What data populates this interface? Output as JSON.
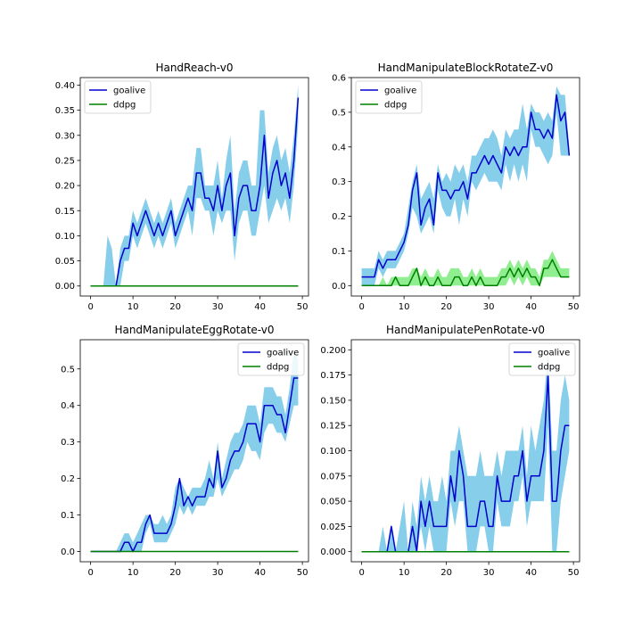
{
  "colors": {
    "goalive_line": "#0000cd",
    "goalive_band": "#87ceeb",
    "ddpg_line": "#008000",
    "ddpg_band": "#90ee90",
    "axis": "#000000"
  },
  "chart_data": [
    {
      "type": "line",
      "title": "HandReach-v0",
      "xlabel": "",
      "ylabel": "",
      "xlim": [
        -2.45,
        51.45
      ],
      "ylim": [
        -0.02,
        0.415
      ],
      "xticks": [
        0,
        10,
        20,
        30,
        40,
        50
      ],
      "yticks": [
        0.0,
        0.05,
        0.1,
        0.15,
        0.2,
        0.25,
        0.3,
        0.35,
        0.4
      ],
      "ytick_labels": [
        "0.00",
        "0.05",
        "0.10",
        "0.15",
        "0.20",
        "0.25",
        "0.30",
        "0.35",
        "0.40"
      ],
      "legend": "upper-left",
      "x_range": [
        0,
        49
      ],
      "series": [
        {
          "name": "goalive",
          "color": "#0000cd",
          "band_color": "#87ceeb",
          "values": [
            0,
            0,
            0,
            0,
            0,
            0,
            0,
            0.05,
            0.075,
            0.075,
            0.125,
            0.1,
            0.125,
            0.15,
            0.125,
            0.1,
            0.125,
            0.1,
            0.125,
            0.15,
            0.1,
            0.125,
            0.15,
            0.175,
            0.15,
            0.225,
            0.225,
            0.175,
            0.175,
            0.15,
            0.2,
            0.15,
            0.2,
            0.225,
            0.1,
            0.175,
            0.2,
            0.2,
            0.15,
            0.15,
            0.2,
            0.3,
            0.175,
            0.225,
            0.25,
            0.2,
            0.225,
            0.175,
            0.25,
            0.375
          ],
          "lower": [
            0,
            0,
            0,
            0,
            0,
            0,
            0,
            0,
            0.05,
            0.05,
            0.1,
            0.075,
            0.1,
            0.125,
            0.1,
            0.075,
            0.1,
            0.075,
            0.1,
            0.125,
            0.075,
            0.1,
            0.125,
            0.15,
            0.1,
            0.175,
            0.175,
            0.15,
            0.15,
            0.1,
            0.15,
            0.125,
            0.15,
            0.15,
            0.05,
            0.125,
            0.15,
            0.15,
            0.1,
            0.1,
            0.15,
            0.2,
            0.125,
            0.15,
            0.175,
            0.15,
            0.175,
            0.125,
            0.2,
            0.325
          ],
          "upper": [
            0,
            0,
            0,
            0,
            0.1,
            0.075,
            0,
            0.075,
            0.1,
            0.1,
            0.15,
            0.125,
            0.15,
            0.175,
            0.15,
            0.125,
            0.15,
            0.125,
            0.15,
            0.175,
            0.125,
            0.15,
            0.175,
            0.2,
            0.2,
            0.275,
            0.275,
            0.2,
            0.2,
            0.2,
            0.25,
            0.175,
            0.25,
            0.3,
            0.15,
            0.225,
            0.25,
            0.25,
            0.2,
            0.2,
            0.35,
            0.35,
            0.225,
            0.275,
            0.3,
            0.25,
            0.275,
            0.225,
            0.3,
            0.4
          ]
        },
        {
          "name": "ddpg",
          "color": "#008000",
          "band_color": "#90ee90",
          "values": [
            0,
            0,
            0,
            0,
            0,
            0,
            0,
            0,
            0,
            0,
            0,
            0,
            0,
            0,
            0,
            0,
            0,
            0,
            0,
            0,
            0,
            0,
            0,
            0,
            0,
            0,
            0,
            0,
            0,
            0,
            0,
            0,
            0,
            0,
            0,
            0,
            0,
            0,
            0,
            0,
            0,
            0,
            0,
            0,
            0,
            0,
            0,
            0,
            0,
            0
          ]
        }
      ]
    },
    {
      "type": "line",
      "title": "HandManipulateBlockRotateZ-v0",
      "xlabel": "",
      "ylabel": "",
      "xlim": [
        -2.45,
        51.45
      ],
      "ylim": [
        -0.03,
        0.6
      ],
      "xticks": [
        0,
        10,
        20,
        30,
        40,
        50
      ],
      "yticks": [
        0.0,
        0.1,
        0.2,
        0.3,
        0.4,
        0.5,
        0.6
      ],
      "ytick_labels": [
        "0.0",
        "0.1",
        "0.2",
        "0.3",
        "0.4",
        "0.5",
        "0.6"
      ],
      "legend": "upper-left",
      "x_range": [
        0,
        49
      ],
      "series": [
        {
          "name": "goalive",
          "color": "#0000cd",
          "band_color": "#87ceeb",
          "values": [
            0.025,
            0.025,
            0.025,
            0.025,
            0.075,
            0.05,
            0.075,
            0.075,
            0.075,
            0.1,
            0.125,
            0.175,
            0.275,
            0.325,
            0.175,
            0.225,
            0.25,
            0.175,
            0.325,
            0.275,
            0.275,
            0.25,
            0.275,
            0.275,
            0.3,
            0.25,
            0.325,
            0.325,
            0.35,
            0.375,
            0.35,
            0.375,
            0.35,
            0.325,
            0.4,
            0.375,
            0.4,
            0.375,
            0.4,
            0.4,
            0.5,
            0.45,
            0.45,
            0.425,
            0.45,
            0.425,
            0.55,
            0.475,
            0.5,
            0.375
          ],
          "lower": [
            0,
            0,
            0,
            0,
            0.05,
            0.025,
            0.05,
            0.05,
            0.05,
            0.075,
            0.1,
            0.15,
            0.225,
            0.2,
            0.15,
            0.175,
            0.2,
            0.15,
            0.275,
            0.225,
            0.2,
            0.2,
            0.25,
            0.175,
            0.25,
            0.2,
            0.3,
            0.275,
            0.3,
            0.325,
            0.3,
            0.3,
            0.3,
            0.275,
            0.35,
            0.3,
            0.35,
            0.3,
            0.35,
            0.3,
            0.45,
            0.4,
            0.4,
            0.375,
            0.35,
            0.375,
            0.5,
            0.375,
            0.375,
            0.375
          ],
          "upper": [
            0.05,
            0.05,
            0.05,
            0.05,
            0.1,
            0.075,
            0.1,
            0.1,
            0.1,
            0.125,
            0.15,
            0.225,
            0.3,
            0.35,
            0.25,
            0.275,
            0.3,
            0.25,
            0.35,
            0.3,
            0.325,
            0.3,
            0.35,
            0.325,
            0.35,
            0.3,
            0.375,
            0.375,
            0.4,
            0.425,
            0.425,
            0.45,
            0.425,
            0.375,
            0.45,
            0.425,
            0.45,
            0.45,
            0.525,
            0.45,
            0.525,
            0.5,
            0.5,
            0.475,
            0.5,
            0.475,
            0.575,
            0.55,
            0.55,
            0.4
          ]
        },
        {
          "name": "ddpg",
          "color": "#008000",
          "band_color": "#90ee90",
          "values": [
            0,
            0,
            0,
            0,
            0,
            0,
            0,
            0,
            0.025,
            0,
            0,
            0,
            0.025,
            0.05,
            0,
            0.025,
            0,
            0,
            0.025,
            0,
            0,
            0,
            0.025,
            0.025,
            0,
            0,
            0.025,
            0,
            0.025,
            0,
            0,
            0,
            0,
            0.025,
            0.025,
            0.05,
            0.025,
            0.05,
            0.025,
            0.05,
            0.025,
            0.025,
            0,
            0.05,
            0.05,
            0.075,
            0.05,
            0.025,
            0.025,
            0.025
          ],
          "lower": [
            0,
            0,
            0,
            0,
            0,
            0,
            0,
            0,
            0,
            0,
            0,
            0,
            0,
            0,
            0,
            0,
            0,
            0,
            0,
            0,
            0,
            0,
            0,
            0,
            0,
            0,
            0,
            0,
            0,
            0,
            0,
            0,
            0,
            0,
            0,
            0.025,
            0,
            0.025,
            0,
            0.025,
            0,
            0,
            0,
            0.025,
            0.025,
            0.025,
            0.025,
            0.025,
            0.025,
            0.025
          ],
          "upper": [
            0,
            0,
            0,
            0,
            0,
            0.025,
            0,
            0.025,
            0.025,
            0.025,
            0.025,
            0.025,
            0.05,
            0.05,
            0.025,
            0.05,
            0.025,
            0.025,
            0.05,
            0.025,
            0.025,
            0.05,
            0.05,
            0.05,
            0.025,
            0.025,
            0.05,
            0.025,
            0.05,
            0.025,
            0.025,
            0.025,
            0.025,
            0.05,
            0.05,
            0.075,
            0.05,
            0.075,
            0.05,
            0.075,
            0.05,
            0.05,
            0.025,
            0.075,
            0.075,
            0.1,
            0.075,
            0.05,
            0.05,
            0.05
          ]
        }
      ]
    },
    {
      "type": "line",
      "title": "HandManipulateEggRotate-v0",
      "xlabel": "",
      "ylabel": "",
      "xlim": [
        -2.45,
        51.45
      ],
      "ylim": [
        -0.028,
        0.58
      ],
      "xticks": [
        0,
        10,
        20,
        30,
        40,
        50
      ],
      "yticks": [
        0.0,
        0.1,
        0.2,
        0.3,
        0.4,
        0.5
      ],
      "ytick_labels": [
        "0.0",
        "0.1",
        "0.2",
        "0.3",
        "0.4",
        "0.5"
      ],
      "legend": "upper-right",
      "x_range": [
        0,
        49
      ],
      "series": [
        {
          "name": "goalive",
          "color": "#0000cd",
          "band_color": "#87ceeb",
          "values": [
            0,
            0,
            0,
            0,
            0,
            0,
            0,
            0,
            0.025,
            0.025,
            0,
            0.025,
            0.025,
            0.075,
            0.1,
            0.05,
            0.05,
            0.05,
            0.05,
            0.075,
            0.125,
            0.2,
            0.125,
            0.15,
            0.125,
            0.15,
            0.15,
            0.15,
            0.2,
            0.175,
            0.275,
            0.175,
            0.2,
            0.25,
            0.275,
            0.275,
            0.3,
            0.35,
            0.35,
            0.35,
            0.3,
            0.4,
            0.4,
            0.4,
            0.375,
            0.375,
            0.325,
            0.4,
            0.475,
            0.475
          ],
          "lower": [
            0,
            0,
            0,
            0,
            0,
            0,
            0,
            0,
            0,
            0,
            0,
            0,
            0,
            0.05,
            0.075,
            0.025,
            0.025,
            0.025,
            0.025,
            0.05,
            0.075,
            0.125,
            0.1,
            0.125,
            0.1,
            0.125,
            0.125,
            0.125,
            0.15,
            0.15,
            0.2,
            0.15,
            0.175,
            0.2,
            0.225,
            0.225,
            0.25,
            0.3,
            0.275,
            0.275,
            0.25,
            0.325,
            0.35,
            0.35,
            0.325,
            0.325,
            0.3,
            0.35,
            0.4,
            0.4
          ],
          "upper": [
            0,
            0,
            0,
            0,
            0,
            0,
            0,
            0.025,
            0.05,
            0.05,
            0.025,
            0.05,
            0.075,
            0.1,
            0.1,
            0.075,
            0.075,
            0.1,
            0.075,
            0.1,
            0.175,
            0.2,
            0.175,
            0.15,
            0.175,
            0.175,
            0.175,
            0.2,
            0.25,
            0.2,
            0.3,
            0.2,
            0.25,
            0.3,
            0.325,
            0.325,
            0.35,
            0.4,
            0.4,
            0.4,
            0.35,
            0.45,
            0.45,
            0.45,
            0.425,
            0.425,
            0.375,
            0.45,
            0.55,
            0.525
          ]
        },
        {
          "name": "ddpg",
          "color": "#008000",
          "band_color": "#90ee90",
          "values": [
            0,
            0,
            0,
            0,
            0,
            0,
            0,
            0,
            0,
            0,
            0,
            0,
            0,
            0,
            0,
            0,
            0,
            0,
            0,
            0,
            0,
            0,
            0,
            0,
            0,
            0,
            0,
            0,
            0,
            0,
            0,
            0,
            0,
            0,
            0,
            0,
            0,
            0,
            0,
            0,
            0,
            0,
            0,
            0,
            0,
            0,
            0,
            0,
            0,
            0
          ]
        }
      ]
    },
    {
      "type": "line",
      "title": "HandManipulatePenRotate-v0",
      "xlabel": "",
      "ylabel": "",
      "xlim": [
        -2.45,
        51.45
      ],
      "ylim": [
        -0.01,
        0.21
      ],
      "xticks": [
        0,
        10,
        20,
        30,
        40,
        50
      ],
      "yticks": [
        0.0,
        0.025,
        0.05,
        0.075,
        0.1,
        0.125,
        0.15,
        0.175,
        0.2
      ],
      "ytick_labels": [
        "0.000",
        "0.025",
        "0.050",
        "0.075",
        "0.100",
        "0.125",
        "0.150",
        "0.175",
        "0.200"
      ],
      "legend": "upper-right",
      "x_range": [
        0,
        49
      ],
      "series": [
        {
          "name": "goalive",
          "color": "#0000cd",
          "band_color": "#87ceeb",
          "values": [
            0,
            0,
            0,
            0,
            0,
            0,
            0,
            0.025,
            0,
            0,
            0,
            0,
            0.025,
            0,
            0.05,
            0.025,
            0.05,
            0.025,
            0.025,
            0.025,
            0.025,
            0.075,
            0.05,
            0.1,
            0.075,
            0.025,
            0.025,
            0.025,
            0.05,
            0.05,
            0.025,
            0.025,
            0.075,
            0.05,
            0.05,
            0.05,
            0.075,
            0.075,
            0.1,
            0.05,
            0.075,
            0.075,
            0.075,
            0.1,
            0.175,
            0.05,
            0.05,
            0.1,
            0.125,
            0.125
          ],
          "lower": [
            0,
            0,
            0,
            0,
            0,
            0,
            0,
            0,
            0,
            0,
            0,
            0,
            0,
            0,
            0.025,
            0,
            0.025,
            0,
            0,
            0,
            0,
            0.05,
            0.025,
            0.05,
            0.05,
            0,
            0,
            0,
            0.025,
            0.025,
            0,
            0,
            0.05,
            0.025,
            0.025,
            0.025,
            0.05,
            0.05,
            0.075,
            0.025,
            0.05,
            0.05,
            0.05,
            0.05,
            0.125,
            0,
            0,
            0.05,
            0.075,
            0.1
          ],
          "upper": [
            0,
            0,
            0,
            0,
            0,
            0.025,
            0,
            0.025,
            0,
            0.025,
            0.05,
            0,
            0.05,
            0.025,
            0.075,
            0.05,
            0.075,
            0.05,
            0.05,
            0.075,
            0.05,
            0.1,
            0.1,
            0.125,
            0.1,
            0.075,
            0.075,
            0.075,
            0.1,
            0.075,
            0.075,
            0.075,
            0.1,
            0.075,
            0.1,
            0.1,
            0.1,
            0.1,
            0.125,
            0.075,
            0.125,
            0.1,
            0.125,
            0.15,
            0.2,
            0.1,
            0.1,
            0.15,
            0.175,
            0.15
          ]
        },
        {
          "name": "ddpg",
          "color": "#008000",
          "band_color": "#90ee90",
          "values": [
            0,
            0,
            0,
            0,
            0,
            0,
            0,
            0,
            0,
            0,
            0,
            0,
            0,
            0,
            0,
            0,
            0,
            0,
            0,
            0,
            0,
            0,
            0,
            0,
            0,
            0,
            0,
            0,
            0,
            0,
            0,
            0,
            0,
            0,
            0,
            0,
            0,
            0,
            0,
            0,
            0,
            0,
            0,
            0,
            0,
            0,
            0,
            0,
            0,
            0
          ]
        }
      ]
    }
  ]
}
